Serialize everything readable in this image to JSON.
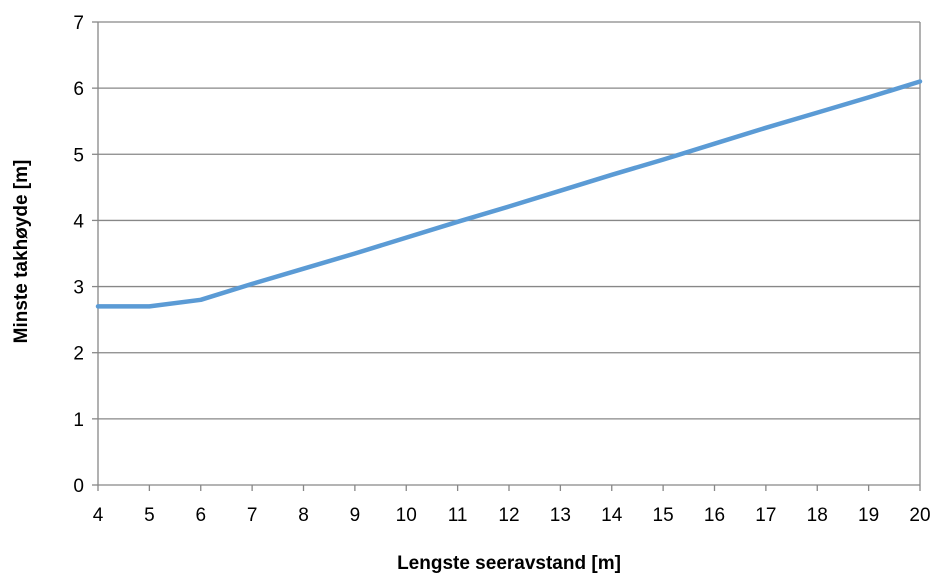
{
  "chart_data": {
    "type": "line",
    "title": "",
    "xlabel": "Lengste seeravstand [m]",
    "ylabel": "Minste takhøyde [m]",
    "x": [
      4,
      5,
      6,
      7,
      8,
      9,
      10,
      11,
      12,
      13,
      14,
      15,
      16,
      17,
      18,
      19,
      20
    ],
    "x_tick_labels": [
      "4",
      "5",
      "6",
      "7",
      "8",
      "9",
      "10",
      "11",
      "12",
      "13",
      "14",
      "15",
      "16",
      "17",
      "18",
      "19",
      "20"
    ],
    "y_tick_labels": [
      "0",
      "1",
      "2",
      "3",
      "4",
      "5",
      "6",
      "7"
    ],
    "xlim": [
      4,
      20
    ],
    "ylim": [
      0,
      7
    ],
    "grid": "horizontal",
    "legend": "none",
    "series": [
      {
        "color": "#5B9BD5",
        "values": [
          2.7,
          2.7,
          2.8,
          3.04,
          3.27,
          3.5,
          3.74,
          3.98,
          4.21,
          4.45,
          4.69,
          4.92,
          5.16,
          5.4,
          5.63,
          5.86,
          6.1
        ]
      }
    ]
  }
}
